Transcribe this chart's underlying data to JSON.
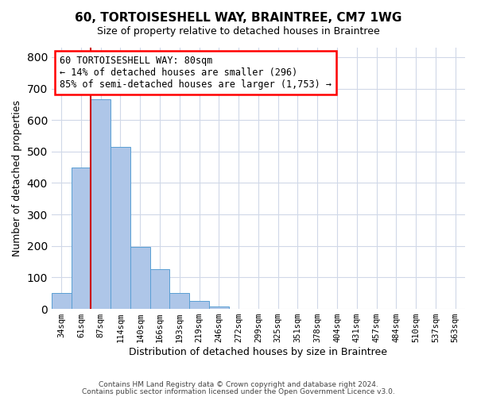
{
  "title": "60, TORTOISESHELL WAY, BRAINTREE, CM7 1WG",
  "subtitle": "Size of property relative to detached houses in Braintree",
  "xlabel": "Distribution of detached houses by size in Braintree",
  "ylabel": "Number of detached properties",
  "bin_labels": [
    "34sqm",
    "61sqm",
    "87sqm",
    "114sqm",
    "140sqm",
    "166sqm",
    "193sqm",
    "219sqm",
    "246sqm",
    "272sqm",
    "299sqm",
    "325sqm",
    "351sqm",
    "378sqm",
    "404sqm",
    "431sqm",
    "457sqm",
    "484sqm",
    "510sqm",
    "537sqm",
    "563sqm"
  ],
  "bar_values": [
    50,
    450,
    665,
    515,
    197,
    126,
    50,
    25,
    8,
    0,
    0,
    0,
    0,
    0,
    0,
    0,
    0,
    0,
    0,
    0,
    0
  ],
  "bar_color": "#aec6e8",
  "bar_edge_color": "#5a9fd4",
  "property_line_color": "#cc0000",
  "annotation_box_text": "60 TORTOISESHELL WAY: 80sqm\n← 14% of detached houses are smaller (296)\n85% of semi-detached houses are larger (1,753) →",
  "ylim": [
    0,
    830
  ],
  "footer_line1": "Contains HM Land Registry data © Crown copyright and database right 2024.",
  "footer_line2": "Contains public sector information licensed under the Open Government Licence v3.0.",
  "background_color": "#ffffff",
  "grid_color": "#d0d8e8"
}
